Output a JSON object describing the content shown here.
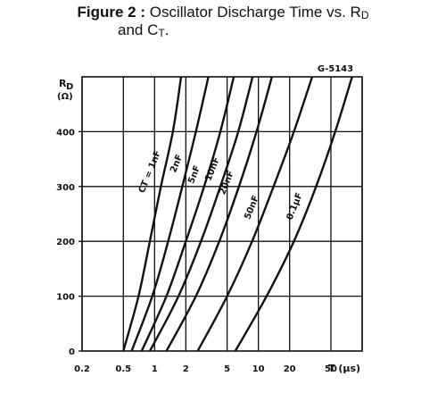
{
  "figure": {
    "number_label": "Figure 2 :",
    "title_line1": "Oscillator Discharge Time vs. R",
    "title_line1_sub": "D",
    "title_line2": "and C",
    "title_line2_sub": "T",
    "title_line2_end": "."
  },
  "chart_data": {
    "type": "line",
    "code": "G-5143",
    "xlabel": "T (μs)",
    "ylabel_main": "R",
    "ylabel_sub": "D",
    "ylabel_unit": "(Ω)",
    "xscale": "log",
    "xlim": [
      0.2,
      100
    ],
    "ylim": [
      0,
      500
    ],
    "x_ticks": [
      0.2,
      0.5,
      1,
      2,
      5,
      10,
      20,
      50
    ],
    "x_tick_labels": [
      "0.2",
      "0.5",
      "1",
      "2",
      "5",
      "10",
      "20",
      "50"
    ],
    "y_ticks": [
      0,
      100,
      200,
      300,
      400
    ],
    "y_tick_labels": [
      "0",
      "100",
      "200",
      "300",
      "400"
    ],
    "grid": true,
    "series": [
      {
        "name": "CT = 1nF",
        "x": [
          0.5,
          0.7,
          0.9,
          1.15,
          1.5,
          1.8
        ],
        "y": [
          0,
          100,
          200,
          300,
          400,
          500
        ]
      },
      {
        "name": "2nF",
        "x": [
          0.6,
          0.95,
          1.35,
          1.85,
          2.5,
          3.3
        ],
        "y": [
          0,
          100,
          200,
          300,
          400,
          500
        ]
      },
      {
        "name": "5nF",
        "x": [
          0.75,
          1.3,
          2.0,
          3.0,
          4.3,
          5.8
        ],
        "y": [
          0,
          100,
          200,
          300,
          400,
          500
        ]
      },
      {
        "name": "10nF",
        "x": [
          0.9,
          1.7,
          2.8,
          4.3,
          6.4,
          8.8
        ],
        "y": [
          0,
          100,
          200,
          300,
          400,
          500
        ]
      },
      {
        "name": "20nF",
        "x": [
          1.3,
          2.5,
          4.2,
          6.5,
          9.6,
          13.5
        ],
        "y": [
          0,
          100,
          200,
          300,
          400,
          500
        ]
      },
      {
        "name": "50nF",
        "x": [
          2.6,
          5.0,
          8.7,
          14.0,
          22.0,
          33.0
        ],
        "y": [
          0,
          100,
          200,
          300,
          400,
          500
        ]
      },
      {
        "name": "0.1μF",
        "x": [
          6.0,
          12.0,
          22.0,
          36.0,
          55.0,
          80.0
        ],
        "y": [
          0,
          100,
          200,
          300,
          400,
          500
        ]
      }
    ]
  }
}
